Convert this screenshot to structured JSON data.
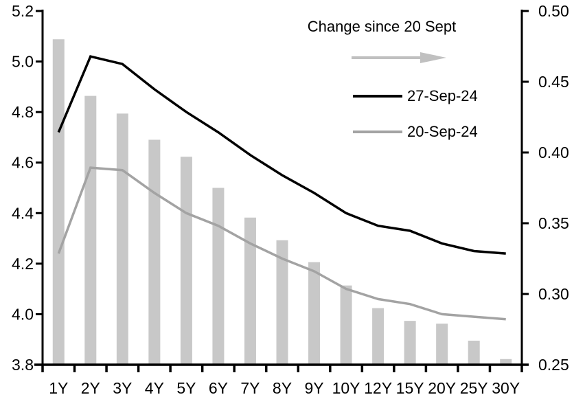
{
  "legend": {
    "title": "Change since 20 Sept",
    "arrow_color": "#c0c0c0",
    "series27_label": "27-Sep-24",
    "series20_label": "20-Sep-24"
  },
  "chart_data": {
    "type": "bar",
    "note": "combo chart: bars on right axis, two lines on left axis",
    "categories": [
      "1Y",
      "2Y",
      "3Y",
      "4Y",
      "5Y",
      "6Y",
      "7Y",
      "8Y",
      "9Y",
      "10Y",
      "12Y",
      "15Y",
      "20Y",
      "25Y",
      "30Y"
    ],
    "series": [
      {
        "name": "Change since 20 Sept",
        "type": "bar",
        "axis": "right",
        "color": "#c8c8c8",
        "values": [
          0.48,
          0.44,
          0.4275,
          0.409,
          0.397,
          0.375,
          0.354,
          0.338,
          0.3225,
          0.306,
          0.29,
          0.281,
          0.279,
          0.267,
          0.254
        ]
      },
      {
        "name": "27-Sep-24",
        "type": "line",
        "axis": "left",
        "color": "#000000",
        "values": [
          4.72,
          5.02,
          4.99,
          4.89,
          4.8,
          4.72,
          4.63,
          4.55,
          4.48,
          4.4,
          4.35,
          4.33,
          4.28,
          4.25,
          4.24
        ]
      },
      {
        "name": "20-Sep-24",
        "type": "line",
        "axis": "left",
        "color": "#a3a3a3",
        "values": [
          4.24,
          4.58,
          4.57,
          4.48,
          4.4,
          4.35,
          4.28,
          4.22,
          4.17,
          4.1,
          4.06,
          4.04,
          4.0,
          3.99,
          3.98
        ]
      }
    ],
    "left_axis": {
      "min": 3.8,
      "max": 5.2,
      "tick_labels": [
        "5.2",
        "5.0",
        "4.8",
        "4.6",
        "4.4",
        "4.2",
        "4.0",
        "3.8"
      ]
    },
    "right_axis": {
      "min": 0.25,
      "max": 0.5,
      "tick_labels": [
        "0.50",
        "0.45",
        "0.40",
        "0.35",
        "0.30",
        "0.25"
      ]
    },
    "grid": false,
    "legend_position": "top-center-inside",
    "title": "",
    "xlabel": "",
    "ylabel": ""
  }
}
